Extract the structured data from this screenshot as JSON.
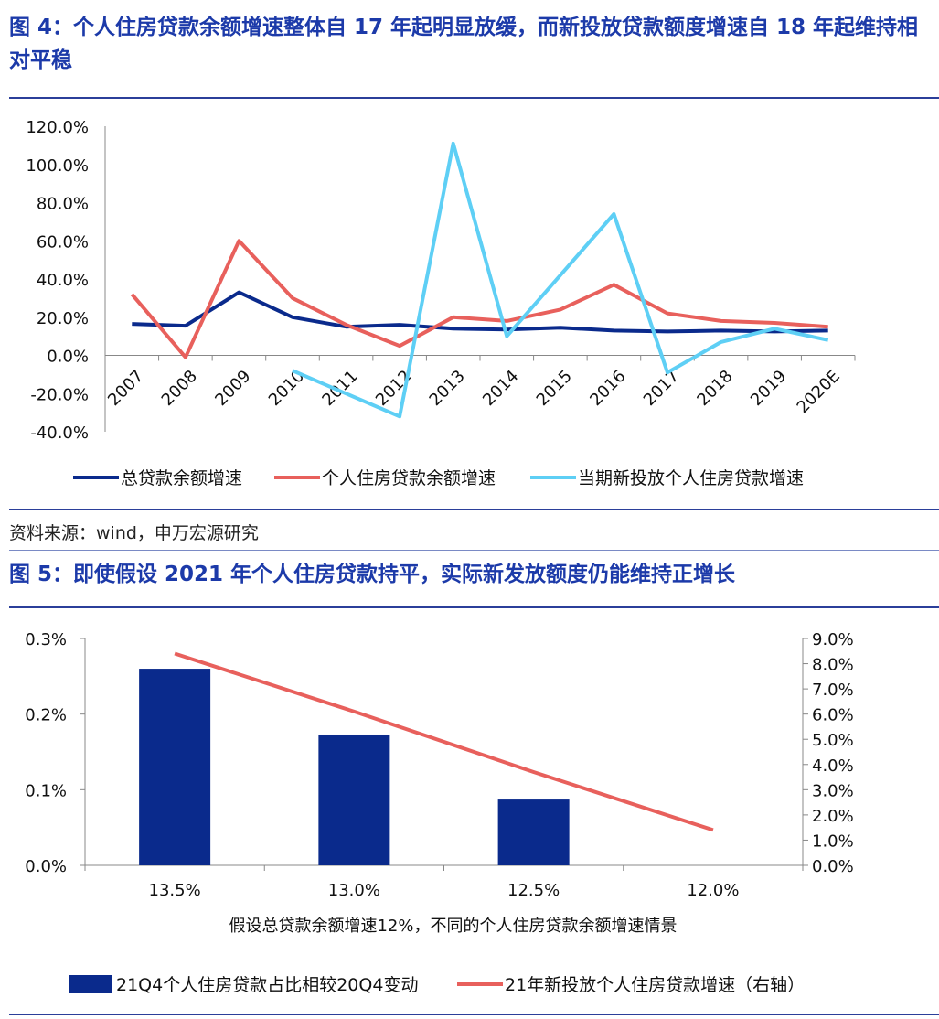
{
  "figure4": {
    "title": "图 4：个人住房贷款余额增速整体自 17 年起明显放缓，而新投放贷款额度增速自 18 年起维持相对平稳",
    "source": "资料来源：wind，申万宏源研究"
  },
  "figure5": {
    "title": "图 5：即使假设 2021 年个人住房贷款持平，实际新发放额度仍能维持正增长"
  },
  "chart_data": [
    {
      "type": "line",
      "x": [
        "2007",
        "2008",
        "2009",
        "2010",
        "2011",
        "2012",
        "2013",
        "2014",
        "2015",
        "2016",
        "2017",
        "2018",
        "2019",
        "2020E"
      ],
      "ylim": [
        -40,
        120
      ],
      "yticks": [
        "120.0%",
        "100.0%",
        "80.0%",
        "60.0%",
        "40.0%",
        "20.0%",
        "0.0%",
        "-20.0%",
        "-40.0%"
      ],
      "legend_position": "bottom",
      "grid": false,
      "series": [
        {
          "name": "总贷款余额增速",
          "color": "#0a2a8c",
          "values": [
            16.5,
            15.5,
            33,
            20,
            15,
            16,
            14,
            13.5,
            14.5,
            13,
            12.5,
            13,
            12.5,
            13
          ]
        },
        {
          "name": "个人住房贷款余额增速",
          "color": "#e8605c",
          "values": [
            32,
            -1,
            60,
            30,
            16,
            5,
            20,
            18,
            24,
            37,
            22,
            18,
            17,
            15
          ]
        },
        {
          "name": "当期新投放个人住房贷款增速",
          "color": "#5ecff5",
          "values": [
            null,
            null,
            null,
            -8,
            -20,
            -32,
            111,
            10,
            42,
            74,
            -9,
            7,
            14,
            8
          ]
        }
      ]
    },
    {
      "type": "bar",
      "categories": [
        "13.5%",
        "13.0%",
        "12.5%",
        "12.0%"
      ],
      "xlabel": "假设总贷款余额增速12%，不同的个人住房贷款余额增速情景",
      "ylim": [
        0,
        0.3
      ],
      "yticks": [
        "0.3%",
        "0.2%",
        "0.1%",
        "0.0%"
      ],
      "y2lim": [
        0,
        9
      ],
      "y2ticks": [
        "9.0%",
        "8.0%",
        "7.0%",
        "6.0%",
        "5.0%",
        "4.0%",
        "3.0%",
        "2.0%",
        "1.0%",
        "0.0%"
      ],
      "legend_position": "bottom",
      "grid": false,
      "series": [
        {
          "name": "21Q4个人住房贷款占比相较20Q4变动",
          "type": "bar",
          "axis": "left",
          "color": "#0a2a8c",
          "values": [
            0.26,
            0.173,
            0.087,
            0
          ]
        },
        {
          "name": "21年新投放个人住房贷款增速（右轴）",
          "type": "line",
          "axis": "right",
          "color": "#e8605c",
          "values": [
            8.4,
            6.1,
            3.7,
            1.4
          ]
        }
      ]
    }
  ]
}
